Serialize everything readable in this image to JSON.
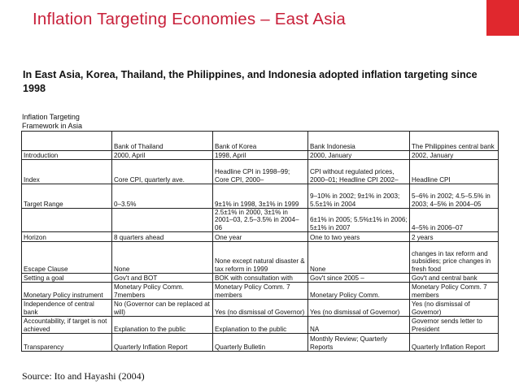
{
  "slide": {
    "title": "Inflation Targeting Economies – East Asia",
    "intro": "In East Asia, Korea, Thailand, the Philippines, and Indonesia adopted inflation targeting since 1998",
    "framework_label_1": "Inflation Targeting",
    "framework_label_2": "Framework in Asia",
    "source": "Source: Ito and Hayashi (2004)",
    "accent_color": "#e0282e"
  },
  "table": {
    "headers": [
      "",
      "Bank of Thailand",
      "Bank of Korea",
      "Bank Indonesia",
      "The Philippines central bank"
    ],
    "rows": [
      [
        "Introduction",
        "2000, April",
        "1998, April",
        "2000, January",
        "2002, January"
      ],
      [
        "Index",
        "Core CPI, quarterly ave.",
        "Headline CPI in 1998–99; Core CPI, 2000–",
        "CPI without regulated prices, 2000–01; Headline CPI 2002–",
        "Headline CPI"
      ],
      [
        "Target Range",
        "0–3.5%",
        "9±1% in 1998, 3±1% in 1999",
        "9–10% in 2002; 9±1% in 2003; 5.5±1% in 2004",
        "5–6% in 2002; 4.5–5.5% in 2003; 4–5% in 2004–05"
      ],
      [
        "",
        "",
        "2.5±1% in 2000, 3±1% in 2001–03, 2.5–3.5% in 2004–06",
        "6±1% in 2005; 5.5%±1% in 2006; 5±1% in 2007",
        "4–5% in 2006–07"
      ],
      [
        "Horizon",
        "8 quarters ahead",
        "One year",
        "One to two years",
        "2 years"
      ],
      [
        "Escape Clause",
        "None",
        "None except natural disaster & tax reform in 1999",
        "None",
        "changes in tax reform and subsidies; price changes in fresh food"
      ],
      [
        "Setting a goal",
        "Gov't and BOT",
        "BOK with consultation with",
        "Gov't since 2005 –",
        "Gov't and central bank"
      ],
      [
        "Monetary Policy instrument",
        "Monetary Policy Comm. 7members",
        "Monetary Policy Comm. 7 members",
        "Monetary Policy Comm.",
        "Monetary Policy Comm. 7 members"
      ],
      [
        "Independence of central bank",
        "No (Governor can be replaced at will)",
        "Yes (no dismissal of Governor)",
        "Yes (no dismissal of Governor)",
        "Yes (no dismissal of Governor)"
      ],
      [
        "Accountability, if target is not achieved",
        "Explanation to the public",
        "Explanation to the public",
        "NA",
        "Governor sends letter to President"
      ],
      [
        "Transparency",
        "Quarterly Inflation Report",
        "Quarterly Bulletin",
        "Monthly Review; Quarterly Reports",
        "Quarterly Inflation Report"
      ]
    ]
  }
}
